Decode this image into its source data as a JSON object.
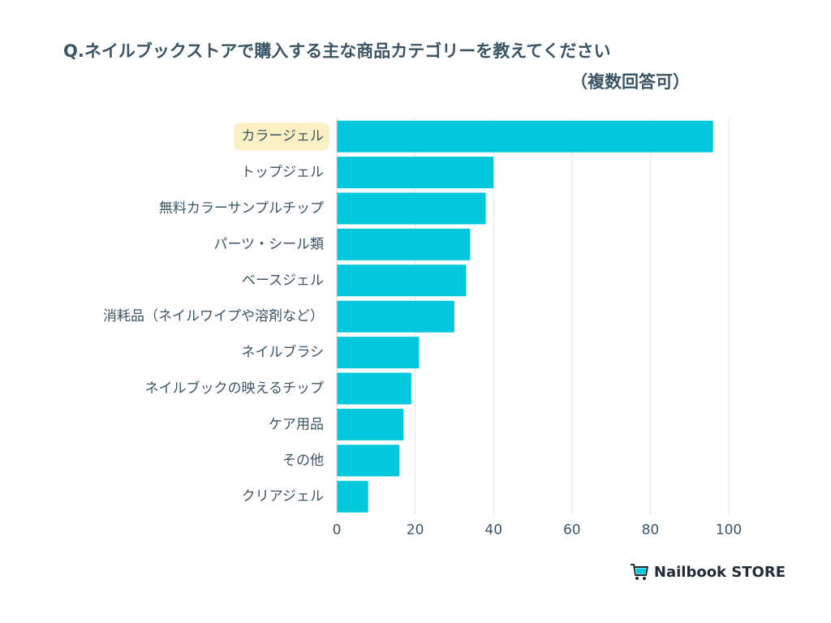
{
  "title": {
    "line1": "Q.ネイルブックストアで購入する主な商品カテゴリーを教えてください",
    "line2": "（複数回答可）"
  },
  "brand": {
    "name": "Nailbook STORE",
    "icon": "shopping-cart-icon"
  },
  "colors": {
    "bar": "#00c8dc",
    "highlight": "#fbf0c4",
    "text": "#3b5566",
    "grid": "#dbe6ea"
  },
  "chart_data": {
    "type": "bar",
    "orientation": "horizontal",
    "title": "Q.ネイルブックストアで購入する主な商品カテゴリーを教えてください（複数回答可）",
    "xlabel": "",
    "ylabel": "",
    "xlim": [
      0,
      100
    ],
    "ticks": [
      0,
      20,
      40,
      60,
      80,
      100
    ],
    "highlighted_category": "カラージェル",
    "categories": [
      "カラージェル",
      "トップジェル",
      "無料カラーサンプルチップ",
      "パーツ・シール類",
      "ベースジェル",
      "消耗品（ネイルワイプや溶剤など）",
      "ネイルブラシ",
      "ネイルブックの映えるチップ",
      "ケア用品",
      "その他",
      "クリアジェル"
    ],
    "values": [
      96,
      40,
      38,
      34,
      33,
      30,
      21,
      19,
      17,
      16,
      8
    ]
  }
}
